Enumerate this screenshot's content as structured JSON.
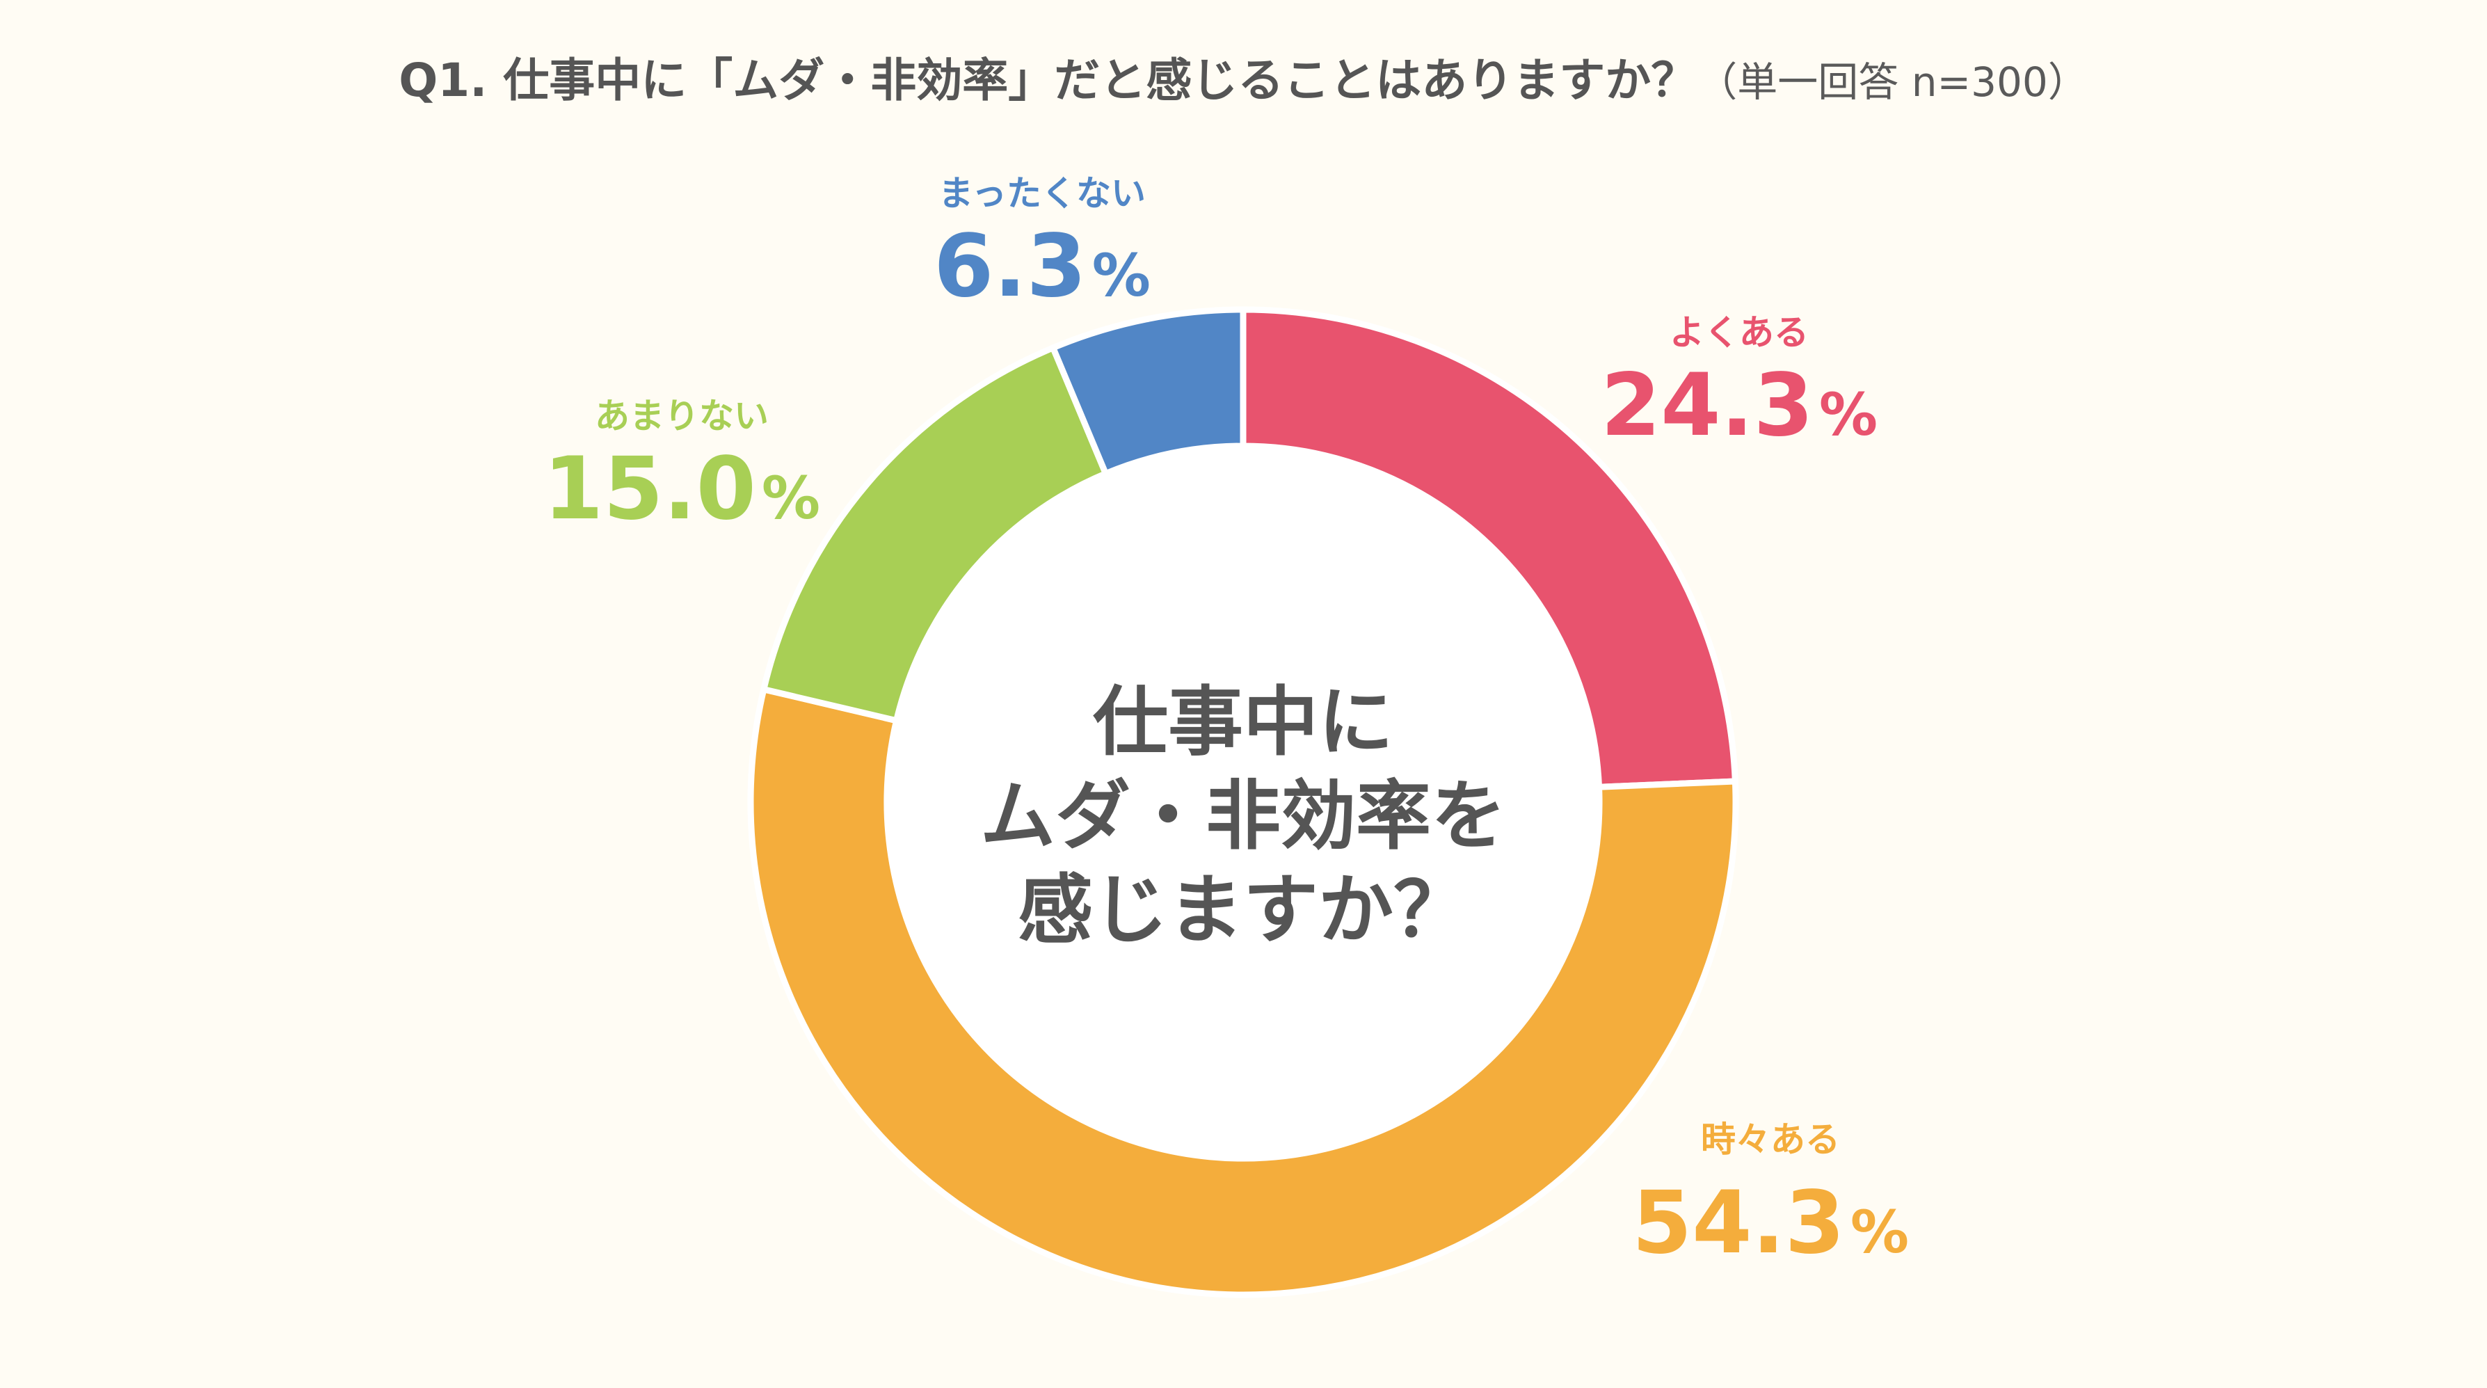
{
  "title": {
    "question": "Q1. 仕事中に「ムダ・非効率」だと感じることはありますか？",
    "note": "（単一回答 n=300）"
  },
  "center_text": [
    "仕事中に",
    "ムダ・非効率を",
    "感じますか？"
  ],
  "chart_data": {
    "type": "pie",
    "donut": true,
    "legend": "none",
    "categories": [
      "よくある",
      "時々ある",
      "あまりない",
      "まったくない"
    ],
    "values": [
      24.3,
      54.3,
      15.0,
      6.3
    ],
    "value_labels": [
      "24.3",
      "54.3",
      "15.0",
      "6.3"
    ],
    "unit": "%",
    "colors": [
      "#e8536e",
      "#f4ad3c",
      "#a8cf55",
      "#5186c6"
    ]
  }
}
